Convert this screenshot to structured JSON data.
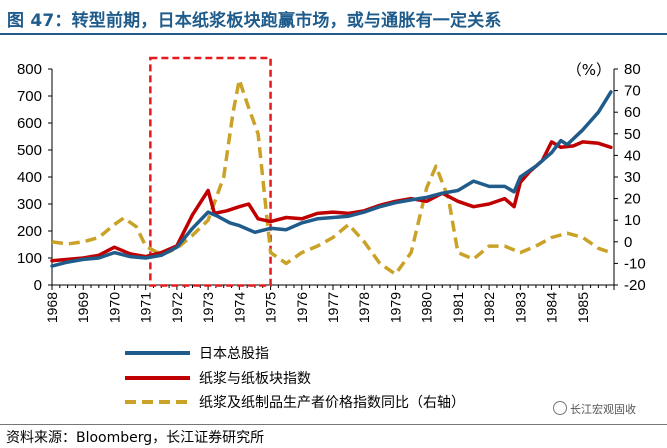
{
  "header": {
    "title": "图 47：转型前期，日本纸浆板块跑赢市场，或与通胀有一定关系"
  },
  "footer": {
    "source": "资料来源：Bloomberg，长江证券研究所",
    "watermark": "长江宏观固收"
  },
  "chart_data": {
    "type": "line",
    "title": "图 47：转型前期，日本纸浆板块跑赢市场，或与通胀有一定关系",
    "left_axis": {
      "range": [
        0,
        800
      ],
      "ticks": [
        "0",
        "100",
        "200",
        "300",
        "400",
        "500",
        "600",
        "700",
        "800"
      ]
    },
    "right_axis": {
      "unit_label": "（%）",
      "range": [
        -20,
        80
      ],
      "ticks": [
        "-20",
        "-10",
        "0",
        "10",
        "20",
        "30",
        "40",
        "50",
        "60",
        "70",
        "80"
      ]
    },
    "x_range": [
      1968,
      1986
    ],
    "x_ticks": [
      "1968",
      "1969",
      "1970",
      "1971",
      "1972",
      "1973",
      "1974",
      "1975",
      "1976",
      "1977",
      "1978",
      "1979",
      "1980",
      "1981",
      "1982",
      "1983",
      "1984",
      "1985"
    ],
    "highlight_region": {
      "x_start": 1971.15,
      "x_end": 1975.0,
      "style": "red dashed box"
    },
    "series": [
      {
        "name": "日本总股指",
        "axis": "left",
        "color": "#1f5c8c",
        "points": [
          [
            1968,
            70
          ],
          [
            1968.5,
            85
          ],
          [
            1969,
            95
          ],
          [
            1969.5,
            100
          ],
          [
            1970,
            120
          ],
          [
            1970.5,
            105
          ],
          [
            1971,
            100
          ],
          [
            1971.5,
            110
          ],
          [
            1972,
            140
          ],
          [
            1972.5,
            210
          ],
          [
            1973,
            270
          ],
          [
            1973.3,
            255
          ],
          [
            1973.7,
            230
          ],
          [
            1974,
            220
          ],
          [
            1974.5,
            195
          ],
          [
            1975,
            210
          ],
          [
            1975.5,
            205
          ],
          [
            1976,
            230
          ],
          [
            1976.5,
            245
          ],
          [
            1977,
            250
          ],
          [
            1977.5,
            255
          ],
          [
            1978,
            270
          ],
          [
            1978.5,
            290
          ],
          [
            1979,
            305
          ],
          [
            1979.5,
            315
          ],
          [
            1980,
            325
          ],
          [
            1980.5,
            340
          ],
          [
            1981,
            350
          ],
          [
            1981.5,
            385
          ],
          [
            1982,
            365
          ],
          [
            1982.5,
            365
          ],
          [
            1982.8,
            345
          ],
          [
            1983,
            400
          ],
          [
            1983.5,
            440
          ],
          [
            1984,
            490
          ],
          [
            1984.3,
            535
          ],
          [
            1984.5,
            520
          ],
          [
            1985,
            575
          ],
          [
            1985.5,
            640
          ],
          [
            1985.9,
            715
          ]
        ]
      },
      {
        "name": "纸浆与纸板块指数",
        "axis": "left",
        "color": "#c00000",
        "points": [
          [
            1968,
            90
          ],
          [
            1968.5,
            95
          ],
          [
            1969,
            100
          ],
          [
            1969.5,
            110
          ],
          [
            1970,
            140
          ],
          [
            1970.5,
            115
          ],
          [
            1971,
            105
          ],
          [
            1971.5,
            120
          ],
          [
            1972,
            145
          ],
          [
            1972.5,
            260
          ],
          [
            1973,
            350
          ],
          [
            1973.2,
            265
          ],
          [
            1973.6,
            275
          ],
          [
            1974,
            290
          ],
          [
            1974.3,
            300
          ],
          [
            1974.6,
            245
          ],
          [
            1975,
            235
          ],
          [
            1975.5,
            250
          ],
          [
            1976,
            245
          ],
          [
            1976.5,
            265
          ],
          [
            1977,
            270
          ],
          [
            1977.5,
            265
          ],
          [
            1978,
            275
          ],
          [
            1978.5,
            295
          ],
          [
            1979,
            310
          ],
          [
            1979.5,
            320
          ],
          [
            1980,
            310
          ],
          [
            1980.5,
            340
          ],
          [
            1981,
            310
          ],
          [
            1981.5,
            290
          ],
          [
            1982,
            300
          ],
          [
            1982.5,
            320
          ],
          [
            1982.8,
            290
          ],
          [
            1983,
            380
          ],
          [
            1983.3,
            420
          ],
          [
            1983.7,
            460
          ],
          [
            1984,
            530
          ],
          [
            1984.3,
            510
          ],
          [
            1984.7,
            515
          ],
          [
            1985,
            530
          ],
          [
            1985.5,
            525
          ],
          [
            1985.9,
            510
          ]
        ]
      },
      {
        "name": "纸浆及纸制品生产者价格指数同比（右轴）",
        "axis": "right",
        "color": "#c9a227",
        "points": [
          [
            1968,
            0
          ],
          [
            1968.5,
            -1
          ],
          [
            1969,
            0
          ],
          [
            1969.5,
            2
          ],
          [
            1970,
            8
          ],
          [
            1970.3,
            11
          ],
          [
            1970.7,
            7
          ],
          [
            1971,
            -2
          ],
          [
            1971.5,
            -6
          ],
          [
            1972,
            -3
          ],
          [
            1972.5,
            3
          ],
          [
            1973,
            10
          ],
          [
            1973.5,
            30
          ],
          [
            1973.8,
            60
          ],
          [
            1974,
            75
          ],
          [
            1974.3,
            62
          ],
          [
            1974.6,
            50
          ],
          [
            1975,
            -5
          ],
          [
            1975.5,
            -10
          ],
          [
            1976,
            -5
          ],
          [
            1976.5,
            -2
          ],
          [
            1977,
            2
          ],
          [
            1977.5,
            8
          ],
          [
            1978,
            0
          ],
          [
            1978.5,
            -10
          ],
          [
            1979,
            -15
          ],
          [
            1979.5,
            -5
          ],
          [
            1980,
            25
          ],
          [
            1980.3,
            35
          ],
          [
            1980.7,
            20
          ],
          [
            1981,
            -5
          ],
          [
            1981.5,
            -8
          ],
          [
            1982,
            -2
          ],
          [
            1982.5,
            -2
          ],
          [
            1983,
            -5
          ],
          [
            1983.5,
            -2
          ],
          [
            1984,
            2
          ],
          [
            1984.5,
            4
          ],
          [
            1985,
            2
          ],
          [
            1985.5,
            -3
          ],
          [
            1985.9,
            -5
          ]
        ]
      }
    ]
  }
}
